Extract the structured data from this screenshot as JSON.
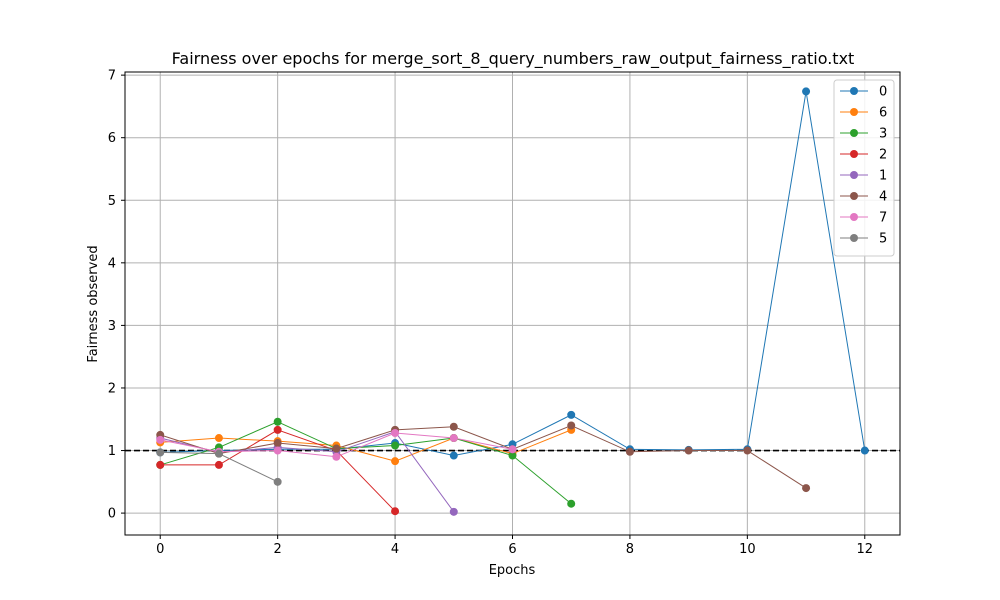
{
  "chart_data": {
    "type": "line",
    "title": "Fairness over epochs for merge_sort_8_query_numbers_raw_output_fairness_ratio.txt",
    "xlabel": "Epochs",
    "ylabel": "Fairness observed",
    "xlim": [
      -0.6,
      12.6
    ],
    "ylim": [
      -0.35,
      7.05
    ],
    "xticks": [
      0,
      2,
      4,
      6,
      8,
      10,
      12
    ],
    "yticks": [
      0,
      1,
      2,
      3,
      4,
      5,
      6,
      7
    ],
    "grid": true,
    "legend_position": "top-right",
    "reference_line": {
      "y": 1.0,
      "style": "dashed",
      "color": "#000000"
    },
    "series": [
      {
        "name": "0",
        "color": "#1f77b4",
        "x": [
          0,
          1,
          2,
          3,
          4,
          5,
          6,
          7,
          8,
          9,
          10,
          11,
          12
        ],
        "y": [
          0.97,
          1.0,
          1.02,
          1.02,
          1.12,
          0.92,
          1.1,
          1.57,
          1.02,
          1.01,
          1.02,
          6.74,
          1.0
        ]
      },
      {
        "name": "6",
        "color": "#ff7f0e",
        "x": [
          0,
          1,
          2,
          3,
          4,
          5,
          6,
          7
        ],
        "y": [
          1.13,
          1.2,
          1.15,
          1.08,
          0.83,
          1.2,
          0.95,
          1.33
        ]
      },
      {
        "name": "3",
        "color": "#2ca02c",
        "x": [
          0,
          1,
          2,
          3,
          4,
          5,
          6,
          7
        ],
        "y": [
          0.77,
          1.05,
          1.46,
          1.03,
          1.08,
          1.2,
          0.92,
          0.15
        ]
      },
      {
        "name": "2",
        "color": "#d62728",
        "x": [
          0,
          1,
          2,
          3,
          4
        ],
        "y": [
          0.77,
          0.77,
          1.33,
          1.0,
          0.03
        ]
      },
      {
        "name": "1",
        "color": "#9467bd",
        "x": [
          0,
          1,
          2,
          3,
          4,
          5
        ],
        "y": [
          1.2,
          0.97,
          1.05,
          0.98,
          1.3,
          0.02
        ]
      },
      {
        "name": "4",
        "color": "#8c564b",
        "x": [
          0,
          1,
          2,
          3,
          4,
          5,
          6,
          7,
          8,
          9,
          10,
          11
        ],
        "y": [
          1.25,
          0.95,
          1.12,
          1.03,
          1.33,
          1.38,
          1.02,
          1.4,
          0.98,
          1.0,
          1.0,
          0.4
        ]
      },
      {
        "name": "7",
        "color": "#e377c2",
        "x": [
          0,
          1,
          2,
          3,
          4,
          5,
          6
        ],
        "y": [
          1.17,
          0.98,
          1.0,
          0.9,
          1.28,
          1.2,
          1.02
        ]
      },
      {
        "name": "5",
        "color": "#7f7f7f",
        "x": [
          0,
          1,
          2
        ],
        "y": [
          0.97,
          0.95,
          0.5
        ]
      }
    ]
  }
}
